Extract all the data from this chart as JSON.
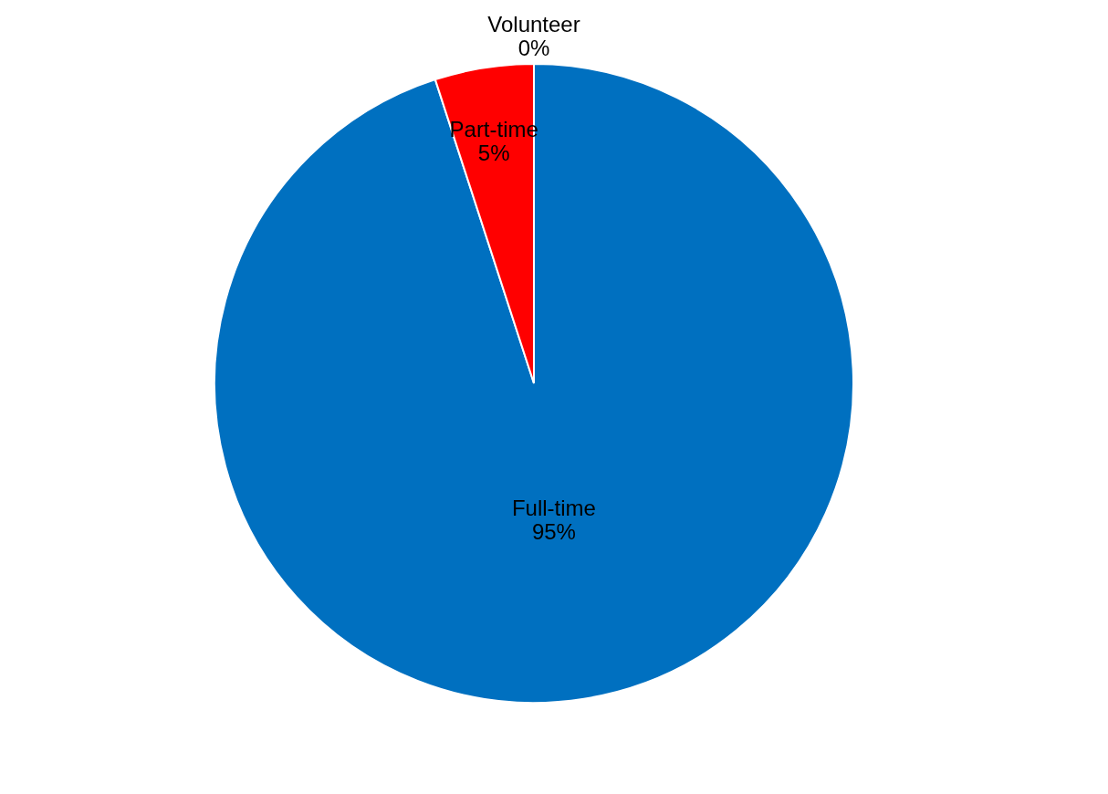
{
  "chart_data": {
    "type": "pie",
    "categories": [
      "Full-time",
      "Part-time",
      "Volunteer"
    ],
    "values": [
      95,
      5,
      0
    ],
    "value_labels": [
      "95%",
      "5%",
      "0%"
    ],
    "colors": [
      "#0070c0",
      "#ff0000",
      "#9bbb59"
    ],
    "legend": false
  }
}
